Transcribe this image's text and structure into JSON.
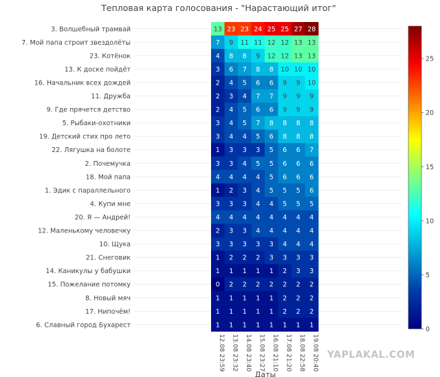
{
  "chart_data": {
    "type": "heatmap",
    "title": "Тепловая карта голосования - \"Нарастающий итог\"",
    "xlabel": "Даты",
    "ylabel": "",
    "x": [
      "12.08 23:59",
      "13.08 23:32",
      "14.08 23:40",
      "15.08 23:27",
      "16.08 21:10",
      "17.08 21:20",
      "18.08 22:58",
      "19.08 20:40"
    ],
    "y": [
      "3. Волшебный трамвай",
      "7. Мой папа строит звездолёты",
      "23. Котёнок",
      "13. К доске пойдёт",
      "16. Начальник всех дождей",
      "11. Дружба",
      "9. Где прячется детство",
      "5. Рыбаки-охотники",
      "19. Детский стих про лето",
      "22. Лягушка на болоте",
      "2. Почемучка",
      "18. Мой папа",
      "1. Эдик с параллельного",
      "4. Купи мне",
      "20. Я — Андрей!",
      "12. Маленькому человечку",
      "10. Щука",
      "21. Снеговик",
      "14. Каникулы у бабушки",
      "15. Пожелание потомку",
      "8. Новый мяч",
      "17. Нипочём!",
      "6. Славный город Бухарест"
    ],
    "z": [
      [
        13,
        23,
        23,
        24,
        25,
        25,
        27,
        28
      ],
      [
        7,
        9,
        11,
        11,
        12,
        12,
        13,
        13
      ],
      [
        4,
        8,
        8,
        9,
        12,
        12,
        13,
        13
      ],
      [
        3,
        6,
        7,
        8,
        8,
        10,
        10,
        10
      ],
      [
        2,
        4,
        5,
        6,
        6,
        9,
        9,
        10
      ],
      [
        2,
        3,
        4,
        7,
        7,
        9,
        9,
        9
      ],
      [
        2,
        4,
        5,
        6,
        6,
        9,
        9,
        9
      ],
      [
        3,
        4,
        5,
        7,
        8,
        8,
        8,
        8
      ],
      [
        3,
        4,
        4,
        5,
        6,
        8,
        8,
        8
      ],
      [
        1,
        3,
        3,
        3,
        5,
        6,
        6,
        7
      ],
      [
        3,
        3,
        4,
        5,
        5,
        6,
        6,
        6
      ],
      [
        4,
        4,
        4,
        4,
        5,
        6,
        6,
        6
      ],
      [
        1,
        2,
        3,
        4,
        5,
        5,
        5,
        6
      ],
      [
        3,
        3,
        3,
        4,
        4,
        5,
        5,
        5
      ],
      [
        4,
        4,
        4,
        4,
        4,
        4,
        4,
        4
      ],
      [
        2,
        3,
        3,
        4,
        4,
        4,
        4,
        4
      ],
      [
        3,
        3,
        3,
        3,
        3,
        4,
        4,
        4
      ],
      [
        1,
        2,
        2,
        2,
        3,
        3,
        3,
        3
      ],
      [
        1,
        1,
        1,
        1,
        1,
        2,
        3,
        3
      ],
      [
        0,
        2,
        2,
        2,
        2,
        2,
        2,
        2
      ],
      [
        1,
        1,
        1,
        1,
        1,
        2,
        2,
        2
      ],
      [
        1,
        1,
        1,
        1,
        1,
        2,
        2,
        2
      ],
      [
        1,
        1,
        1,
        1,
        1,
        1,
        1,
        1
      ]
    ],
    "zlim": [
      0,
      28
    ],
    "colorscale": "Jet",
    "colorbar_ticks": [
      0,
      5,
      10,
      15,
      20,
      25
    ],
    "grid": true,
    "colorbar_position": "right"
  },
  "watermark": "YAPLAKAL.COM"
}
